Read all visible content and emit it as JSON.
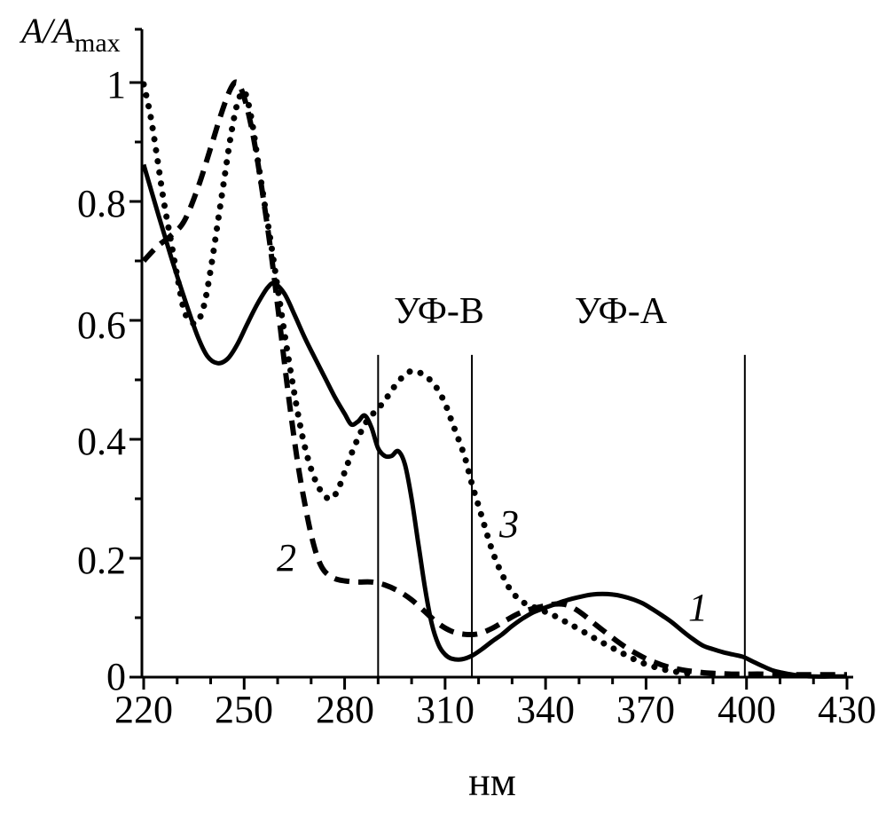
{
  "colors": {
    "ink": "#000000",
    "background": "#ffffff"
  },
  "y_axis": {
    "label_main": "A/A",
    "label_sub": "max",
    "tick_labels": [
      "0",
      "0.2",
      "0.4",
      "0.6",
      "0.8",
      "1"
    ]
  },
  "x_axis": {
    "label": "нм",
    "tick_labels": [
      "220",
      "250",
      "280",
      "310",
      "340",
      "370",
      "400",
      "430"
    ]
  },
  "region_labels": {
    "uvb": "УФ-В",
    "uva": "УФ-А"
  },
  "curve_labels": {
    "c1": "1",
    "c2": "2",
    "c3": "3"
  },
  "chart_data": {
    "type": "line",
    "title": "",
    "xlabel": "нм",
    "ylabel": "A/Amax",
    "xlim": [
      220,
      430
    ],
    "ylim": [
      0,
      1.09
    ],
    "grid": false,
    "legend_position": "none",
    "x_ticks_major": [
      220,
      250,
      280,
      310,
      340,
      370,
      400,
      430
    ],
    "x_ticks_minor": [
      230,
      240,
      260,
      270,
      290,
      300,
      320,
      330,
      350,
      360,
      380,
      390,
      410,
      420
    ],
    "y_ticks_major": [
      0,
      0.2,
      0.4,
      0.6,
      0.8,
      1
    ],
    "y_ticks_minor": [
      0.1,
      0.3,
      0.5,
      0.7,
      0.9
    ],
    "region_boundary_lines_nm": [
      290,
      318,
      399.5
    ],
    "region_boundary_line_top": 0.542,
    "series": [
      {
        "name": "1",
        "style": "solid",
        "points": [
          [
            220,
            0.862
          ],
          [
            224,
            0.785
          ],
          [
            228,
            0.71
          ],
          [
            232,
            0.64
          ],
          [
            236,
            0.575
          ],
          [
            239,
            0.54
          ],
          [
            242,
            0.528
          ],
          [
            245,
            0.535
          ],
          [
            248,
            0.56
          ],
          [
            251,
            0.595
          ],
          [
            254,
            0.628
          ],
          [
            257,
            0.655
          ],
          [
            259,
            0.662
          ],
          [
            262,
            0.645
          ],
          [
            265,
            0.61
          ],
          [
            268,
            0.572
          ],
          [
            271,
            0.538
          ],
          [
            274,
            0.505
          ],
          [
            277,
            0.472
          ],
          [
            280,
            0.443
          ],
          [
            282,
            0.425
          ],
          [
            284,
            0.43
          ],
          [
            286,
            0.44
          ],
          [
            288,
            0.42
          ],
          [
            290,
            0.385
          ],
          [
            292,
            0.372
          ],
          [
            294,
            0.372
          ],
          [
            296,
            0.38
          ],
          [
            298,
            0.358
          ],
          [
            300,
            0.3
          ],
          [
            302,
            0.225
          ],
          [
            304,
            0.15
          ],
          [
            306,
            0.09
          ],
          [
            308,
            0.055
          ],
          [
            310,
            0.038
          ],
          [
            312,
            0.031
          ],
          [
            315,
            0.03
          ],
          [
            318,
            0.036
          ],
          [
            321,
            0.047
          ],
          [
            324,
            0.06
          ],
          [
            327,
            0.072
          ],
          [
            330,
            0.086
          ],
          [
            333,
            0.098
          ],
          [
            336,
            0.108
          ],
          [
            339,
            0.115
          ],
          [
            342,
            0.121
          ],
          [
            345,
            0.127
          ],
          [
            348,
            0.132
          ],
          [
            351,
            0.136
          ],
          [
            354,
            0.139
          ],
          [
            357,
            0.14
          ],
          [
            360,
            0.139
          ],
          [
            363,
            0.136
          ],
          [
            366,
            0.131
          ],
          [
            369,
            0.124
          ],
          [
            372,
            0.114
          ],
          [
            375,
            0.103
          ],
          [
            378,
            0.091
          ],
          [
            381,
            0.077
          ],
          [
            384,
            0.064
          ],
          [
            387,
            0.053
          ],
          [
            390,
            0.047
          ],
          [
            393,
            0.042
          ],
          [
            396,
            0.038
          ],
          [
            399,
            0.034
          ],
          [
            402,
            0.026
          ],
          [
            405,
            0.018
          ],
          [
            408,
            0.011
          ],
          [
            411,
            0.007
          ],
          [
            414,
            0.004
          ],
          [
            417,
            0.002
          ],
          [
            420,
            0.001
          ],
          [
            425,
            0.001
          ],
          [
            430,
            0.001
          ]
        ]
      },
      {
        "name": "2",
        "style": "dashed",
        "points": [
          [
            220,
            0.7
          ],
          [
            224,
            0.724
          ],
          [
            228,
            0.742
          ],
          [
            232,
            0.766
          ],
          [
            236,
            0.82
          ],
          [
            240,
            0.89
          ],
          [
            243,
            0.945
          ],
          [
            246,
            0.99
          ],
          [
            248,
            1.0
          ],
          [
            250,
            0.975
          ],
          [
            252,
            0.93
          ],
          [
            254,
            0.868
          ],
          [
            256,
            0.795
          ],
          [
            258,
            0.715
          ],
          [
            260,
            0.625
          ],
          [
            262,
            0.53
          ],
          [
            264,
            0.44
          ],
          [
            266,
            0.36
          ],
          [
            268,
            0.295
          ],
          [
            270,
            0.24
          ],
          [
            272,
            0.2
          ],
          [
            274,
            0.178
          ],
          [
            277,
            0.166
          ],
          [
            280,
            0.162
          ],
          [
            284,
            0.16
          ],
          [
            288,
            0.16
          ],
          [
            292,
            0.155
          ],
          [
            296,
            0.145
          ],
          [
            300,
            0.13
          ],
          [
            304,
            0.11
          ],
          [
            308,
            0.09
          ],
          [
            312,
            0.077
          ],
          [
            316,
            0.072
          ],
          [
            320,
            0.073
          ],
          [
            324,
            0.082
          ],
          [
            328,
            0.095
          ],
          [
            332,
            0.107
          ],
          [
            336,
            0.115
          ],
          [
            340,
            0.12
          ],
          [
            343,
            0.123
          ],
          [
            346,
            0.122
          ],
          [
            349,
            0.114
          ],
          [
            352,
            0.102
          ],
          [
            355,
            0.088
          ],
          [
            358,
            0.075
          ],
          [
            361,
            0.062
          ],
          [
            364,
            0.05
          ],
          [
            367,
            0.04
          ],
          [
            370,
            0.031
          ],
          [
            373,
            0.024
          ],
          [
            376,
            0.018
          ],
          [
            379,
            0.014
          ],
          [
            382,
            0.011
          ],
          [
            385,
            0.009
          ],
          [
            388,
            0.007
          ],
          [
            392,
            0.006
          ],
          [
            396,
            0.005
          ],
          [
            400,
            0.005
          ],
          [
            405,
            0.005
          ],
          [
            410,
            0.004
          ],
          [
            415,
            0.004
          ],
          [
            420,
            0.004
          ],
          [
            425,
            0.004
          ],
          [
            430,
            0.004
          ]
        ]
      },
      {
        "name": "3",
        "style": "dotted",
        "points": [
          [
            220,
            0.997
          ],
          [
            222,
            0.945
          ],
          [
            224,
            0.875
          ],
          [
            226,
            0.8
          ],
          [
            228,
            0.738
          ],
          [
            230,
            0.675
          ],
          [
            232,
            0.618
          ],
          [
            234,
            0.598
          ],
          [
            236,
            0.597
          ],
          [
            238,
            0.625
          ],
          [
            240,
            0.685
          ],
          [
            242,
            0.76
          ],
          [
            244,
            0.835
          ],
          [
            246,
            0.91
          ],
          [
            248,
            0.965
          ],
          [
            250,
            0.985
          ],
          [
            252,
            0.945
          ],
          [
            254,
            0.872
          ],
          [
            256,
            0.8
          ],
          [
            258,
            0.73
          ],
          [
            260,
            0.655
          ],
          [
            262,
            0.58
          ],
          [
            264,
            0.51
          ],
          [
            266,
            0.445
          ],
          [
            268,
            0.39
          ],
          [
            270,
            0.35
          ],
          [
            272,
            0.322
          ],
          [
            274,
            0.305
          ],
          [
            276,
            0.3
          ],
          [
            278,
            0.315
          ],
          [
            280,
            0.345
          ],
          [
            282,
            0.375
          ],
          [
            284,
            0.402
          ],
          [
            286,
            0.425
          ],
          [
            288,
            0.44
          ],
          [
            290,
            0.452
          ],
          [
            292,
            0.465
          ],
          [
            294,
            0.482
          ],
          [
            296,
            0.497
          ],
          [
            298,
            0.508
          ],
          [
            300,
            0.515
          ],
          [
            302,
            0.513
          ],
          [
            304,
            0.507
          ],
          [
            306,
            0.497
          ],
          [
            308,
            0.482
          ],
          [
            310,
            0.46
          ],
          [
            312,
            0.43
          ],
          [
            314,
            0.4
          ],
          [
            316,
            0.368
          ],
          [
            318,
            0.325
          ],
          [
            320,
            0.288
          ],
          [
            322,
            0.25
          ],
          [
            324,
            0.214
          ],
          [
            326,
            0.185
          ],
          [
            328,
            0.162
          ],
          [
            330,
            0.143
          ],
          [
            333,
            0.127
          ],
          [
            336,
            0.119
          ],
          [
            339,
            0.112
          ],
          [
            342,
            0.105
          ],
          [
            345,
            0.096
          ],
          [
            348,
            0.087
          ],
          [
            352,
            0.074
          ],
          [
            356,
            0.061
          ],
          [
            360,
            0.049
          ],
          [
            364,
            0.037
          ],
          [
            368,
            0.026
          ],
          [
            372,
            0.018
          ],
          [
            376,
            0.012
          ],
          [
            380,
            0.008
          ],
          [
            384,
            0.005
          ]
        ]
      }
    ]
  }
}
